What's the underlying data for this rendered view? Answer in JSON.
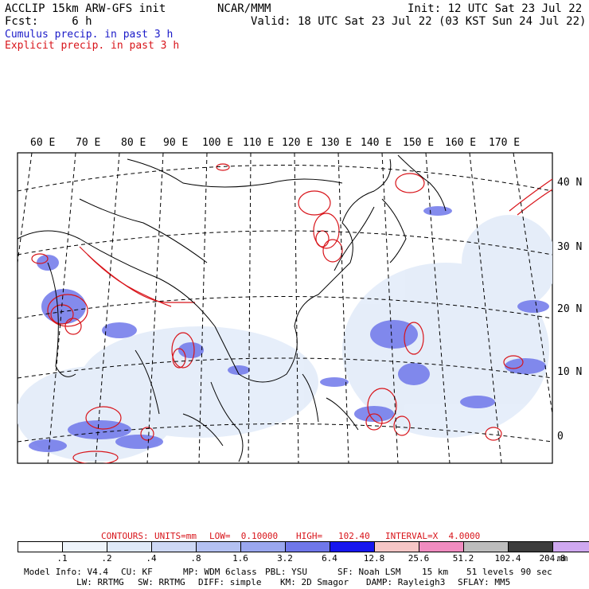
{
  "header": {
    "line1_left": "ACCLIP 15km ARW-GFS init",
    "line1_center": "NCAR/MMM",
    "line1_right": "Init: 12 UTC Sat 23 Jul 22",
    "line2_left": "Fcst:     6 h",
    "line2_right": "Valid: 18 UTC Sat 23 Jul 22 (03 KST Sun 24 Jul 22)",
    "legend_cumulus": "Cumulus precip. in past 3 h",
    "legend_explicit": "Explicit precip. in past 3 h",
    "colors": {
      "cumulus": "#1a1ac8",
      "explicit": "#d8141a"
    }
  },
  "map": {
    "lon_labels": [
      "60 E",
      "70 E",
      "80 E",
      "90 E",
      "100 E",
      "110 E",
      "120 E",
      "130 E",
      "140 E",
      "150 E",
      "160 E",
      "170 E"
    ],
    "lat_labels": [
      "40 N",
      "30 N",
      "20 N",
      "10 N",
      "0"
    ]
  },
  "contours": {
    "label": "CONTOURS:",
    "units": "UNITS=mm",
    "low": "LOW=  0.10000",
    "high": "HIGH=   102.40",
    "interval": "INTERVAL=X  4.0000",
    "color": "#d8141a"
  },
  "colorbar": {
    "ticks": [
      ".1",
      ".2",
      ".4",
      ".8",
      "1.6",
      "3.2",
      "6.4",
      "12.8",
      "25.6",
      "51.2",
      "102.4",
      "204.8"
    ],
    "units": "mm",
    "colors": [
      "#ffffff",
      "#eef4fb",
      "#dfe9f8",
      "#cdd8f5",
      "#b4c1f2",
      "#9aa7ef",
      "#6f77ea",
      "#1616ee",
      "#f6c6c6",
      "#f08cc0",
      "#bdbdbd",
      "#3c3c3c",
      "#cfa8f0"
    ]
  },
  "footer": {
    "row1": [
      "Model Info: V4.4",
      "CU: KF",
      "MP: WDM 6class",
      "PBL: YSU",
      "SF: Noah LSM",
      "15 km",
      "51 levels",
      "90 sec"
    ],
    "row2": [
      "LW: RRTMG",
      "SW: RRTMG",
      "DIFF: simple",
      "KM: 2D Smagor",
      "DAMP: Rayleigh3",
      "SFLAY: MM5"
    ]
  }
}
